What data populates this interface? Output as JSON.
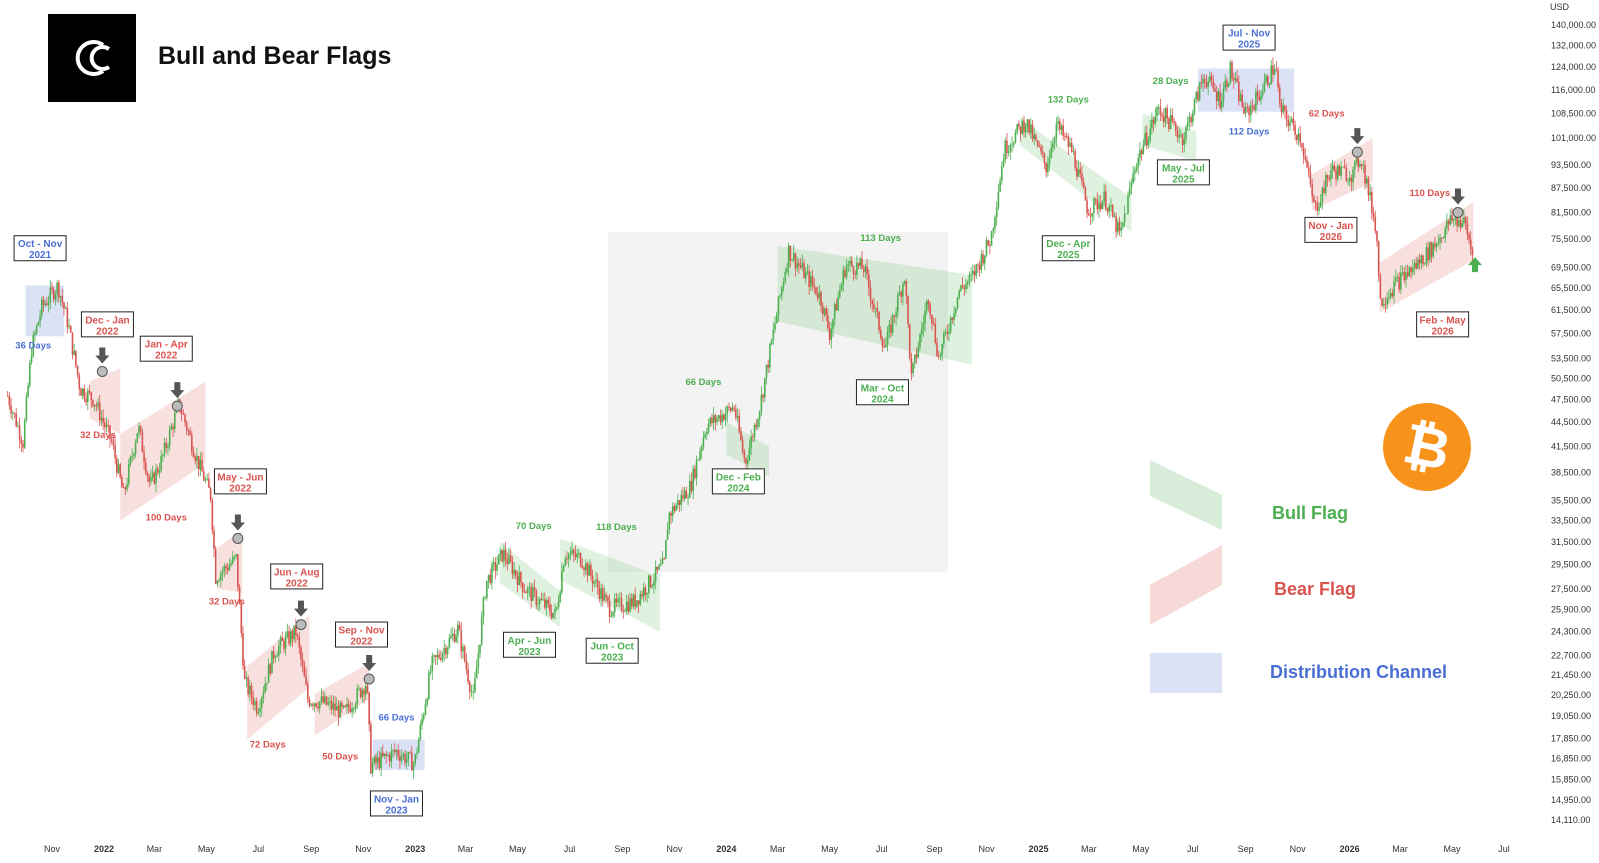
{
  "header": {
    "title": "Bull and Bear Flags"
  },
  "colors": {
    "bull": "#4caf50",
    "bear": "#d9534f",
    "distribution": "#4a6fd4",
    "candle_up": "#4caf50",
    "candle_down": "#d9534f",
    "bitcoin_orange": "#f7931a"
  },
  "legend": {
    "bull": "Bull Flag",
    "bear": "Bear Flag",
    "distribution": "Distribution Channel"
  },
  "chart_data": {
    "type": "candlestick-annotated",
    "title": "Bull and Bear Flags",
    "y_unit": "USD",
    "y_scale": "log",
    "y_ticks": [
      "140,000.00",
      "132,000.00",
      "124,000.00",
      "116,000.00",
      "108,500.00",
      "101,000.00",
      "93,500.00",
      "87,500.00",
      "81,500.00",
      "75,500.00",
      "69,500.00",
      "65,500.00",
      "61,500.00",
      "57,500.00",
      "53,500.00",
      "50,500.00",
      "47,500.00",
      "44,500.00",
      "41,500.00",
      "38,500.00",
      "35,500.00",
      "33,500.00",
      "31,500.00",
      "29,500.00",
      "27,500.00",
      "25,900.00",
      "24,300.00",
      "22,700.00",
      "21,450.00",
      "20,250.00",
      "19,050.00",
      "17,850.00",
      "16,850.00",
      "15,850.00",
      "14,950.00",
      "14,110.00"
    ],
    "y_tick_values": [
      140000,
      132000,
      124000,
      116000,
      108500,
      101000,
      93500,
      87500,
      81500,
      75500,
      69500,
      65500,
      61500,
      57500,
      53500,
      50500,
      47500,
      44500,
      41500,
      38500,
      35500,
      33500,
      31500,
      29500,
      27500,
      25900,
      24300,
      22700,
      21450,
      20250,
      19050,
      17850,
      16850,
      15850,
      14950,
      14110
    ],
    "x_ticks": [
      {
        "label": "Nov",
        "date": "2021-11-01",
        "bold": false
      },
      {
        "label": "2022",
        "date": "2022-01-01",
        "bold": true
      },
      {
        "label": "Mar",
        "date": "2022-03-01",
        "bold": false
      },
      {
        "label": "May",
        "date": "2022-05-01",
        "bold": false
      },
      {
        "label": "Jul",
        "date": "2022-07-01",
        "bold": false
      },
      {
        "label": "Sep",
        "date": "2022-09-01",
        "bold": false
      },
      {
        "label": "Nov",
        "date": "2022-11-01",
        "bold": false
      },
      {
        "label": "2023",
        "date": "2023-01-01",
        "bold": true
      },
      {
        "label": "Mar",
        "date": "2023-03-01",
        "bold": false
      },
      {
        "label": "May",
        "date": "2023-05-01",
        "bold": false
      },
      {
        "label": "Jul",
        "date": "2023-07-01",
        "bold": false
      },
      {
        "label": "Sep",
        "date": "2023-09-01",
        "bold": false
      },
      {
        "label": "Nov",
        "date": "2023-11-01",
        "bold": false
      },
      {
        "label": "2024",
        "date": "2024-01-01",
        "bold": true
      },
      {
        "label": "Mar",
        "date": "2024-03-01",
        "bold": false
      },
      {
        "label": "May",
        "date": "2024-05-01",
        "bold": false
      },
      {
        "label": "Jul",
        "date": "2024-07-01",
        "bold": false
      },
      {
        "label": "Sep",
        "date": "2024-09-01",
        "bold": false
      },
      {
        "label": "Nov",
        "date": "2024-11-01",
        "bold": false
      },
      {
        "label": "2025",
        "date": "2025-01-01",
        "bold": true
      },
      {
        "label": "Mar",
        "date": "2025-03-01",
        "bold": false
      },
      {
        "label": "May",
        "date": "2025-05-01",
        "bold": false
      },
      {
        "label": "Jul",
        "date": "2025-07-01",
        "bold": false
      },
      {
        "label": "Sep",
        "date": "2025-09-01",
        "bold": false
      },
      {
        "label": "Nov",
        "date": "2025-11-01",
        "bold": false
      },
      {
        "label": "2026",
        "date": "2026-01-01",
        "bold": true
      },
      {
        "label": "Mar",
        "date": "2026-03-01",
        "bold": false
      },
      {
        "label": "May",
        "date": "2026-05-01",
        "bold": false
      },
      {
        "label": "Jul",
        "date": "2026-07-01",
        "bold": false
      }
    ],
    "price_path": [
      [
        "2021-09-10",
        48000
      ],
      [
        "2021-09-28",
        42000
      ],
      [
        "2021-10-08",
        55000
      ],
      [
        "2021-10-20",
        62000
      ],
      [
        "2021-11-08",
        66000
      ],
      [
        "2021-11-20",
        59000
      ],
      [
        "2021-12-04",
        49000
      ],
      [
        "2021-12-20",
        47500
      ],
      [
        "2022-01-10",
        42000
      ],
      [
        "2022-01-24",
        36000
      ],
      [
        "2022-02-10",
        44000
      ],
      [
        "2022-02-24",
        37000
      ],
      [
        "2022-03-10",
        40000
      ],
      [
        "2022-03-30",
        47000
      ],
      [
        "2022-04-20",
        40000
      ],
      [
        "2022-05-06",
        36000
      ],
      [
        "2022-05-12",
        28500
      ],
      [
        "2022-06-05",
        30000
      ],
      [
        "2022-06-15",
        21000
      ],
      [
        "2022-06-30",
        19500
      ],
      [
        "2022-07-20",
        23000
      ],
      [
        "2022-08-14",
        24300
      ],
      [
        "2022-08-28",
        20000
      ],
      [
        "2022-09-15",
        19800
      ],
      [
        "2022-10-10",
        19200
      ],
      [
        "2022-11-05",
        21000
      ],
      [
        "2022-11-10",
        16500
      ],
      [
        "2022-12-10",
        17200
      ],
      [
        "2022-12-31",
        16600
      ],
      [
        "2023-01-20",
        22000
      ],
      [
        "2023-02-20",
        24500
      ],
      [
        "2023-03-10",
        20000
      ],
      [
        "2023-03-25",
        28000
      ],
      [
        "2023-04-14",
        30500
      ],
      [
        "2023-05-10",
        27500
      ],
      [
        "2023-06-15",
        25500
      ],
      [
        "2023-06-25",
        30500
      ],
      [
        "2023-07-15",
        30000
      ],
      [
        "2023-08-17",
        26000
      ],
      [
        "2023-09-15",
        26500
      ],
      [
        "2023-10-20",
        29500
      ],
      [
        "2023-10-25",
        34000
      ],
      [
        "2023-11-20",
        37000
      ],
      [
        "2023-12-08",
        44000
      ],
      [
        "2024-01-10",
        46500
      ],
      [
        "2024-01-23",
        39500
      ],
      [
        "2024-02-10",
        47000
      ],
      [
        "2024-02-28",
        60000
      ],
      [
        "2024-03-14",
        73000
      ],
      [
        "2024-04-20",
        64000
      ],
      [
        "2024-05-01",
        57500
      ],
      [
        "2024-05-20",
        70000
      ],
      [
        "2024-06-10",
        69500
      ],
      [
        "2024-07-05",
        55000
      ],
      [
        "2024-07-28",
        68000
      ],
      [
        "2024-08-05",
        50500
      ],
      [
        "2024-08-25",
        64000
      ],
      [
        "2024-09-06",
        53500
      ],
      [
        "2024-09-30",
        65000
      ],
      [
        "2024-10-15",
        67500
      ],
      [
        "2024-11-06",
        75500
      ],
      [
        "2024-11-22",
        98000
      ],
      [
        "2024-12-17",
        106000
      ],
      [
        "2025-01-10",
        93000
      ],
      [
        "2025-01-22",
        105000
      ],
      [
        "2025-02-10",
        97000
      ],
      [
        "2025-02-28",
        82000
      ],
      [
        "2025-03-20",
        85000
      ],
      [
        "2025-04-07",
        76000
      ],
      [
        "2025-04-25",
        94000
      ],
      [
        "2025-05-22",
        110000
      ],
      [
        "2025-06-20",
        101000
      ],
      [
        "2025-07-14",
        121000
      ],
      [
        "2025-08-02",
        113000
      ],
      [
        "2025-08-14",
        123000
      ],
      [
        "2025-09-01",
        108000
      ],
      [
        "2025-09-20",
        116000
      ],
      [
        "2025-10-06",
        125000
      ],
      [
        "2025-10-11",
        110000
      ],
      [
        "2025-11-05",
        101000
      ],
      [
        "2025-11-21",
        82000
      ],
      [
        "2025-12-10",
        92000
      ],
      [
        "2026-01-05",
        91000
      ],
      [
        "2026-01-14",
        96000
      ],
      [
        "2026-02-01",
        78000
      ],
      [
        "2026-02-06",
        63000
      ],
      [
        "2026-02-25",
        66500
      ],
      [
        "2026-03-20",
        70000
      ],
      [
        "2026-04-10",
        74000
      ],
      [
        "2026-05-01",
        80000
      ],
      [
        "2026-05-16",
        79000
      ],
      [
        "2026-05-26",
        71500
      ]
    ],
    "patterns": [
      {
        "kind": "distribution",
        "start": "2021-10-01",
        "end": "2021-11-15",
        "top": 66000,
        "bottom": 57000
      },
      {
        "kind": "bear",
        "start": "2021-12-15",
        "end": "2022-01-20",
        "bottom_start": 45000,
        "bottom_end": 43000,
        "top_start": 50000,
        "top_end": 52000
      },
      {
        "kind": "bear",
        "start": "2022-01-20",
        "end": "2022-04-30",
        "bottom_start": 33500,
        "bottom_end": 39500,
        "top_start": 43000,
        "top_end": 50000
      },
      {
        "kind": "bear",
        "start": "2022-05-14",
        "end": "2022-06-12",
        "bottom_start": 27500,
        "bottom_end": 27200,
        "top_start": 31000,
        "top_end": 32500
      },
      {
        "kind": "bear",
        "start": "2022-06-18",
        "end": "2022-08-30",
        "bottom_start": 17800,
        "bottom_end": 20700,
        "top_start": 22000,
        "top_end": 25500
      },
      {
        "kind": "bear",
        "start": "2022-09-05",
        "end": "2022-11-08",
        "bottom_start": 18000,
        "bottom_end": 20000,
        "top_start": 20300,
        "top_end": 22200
      },
      {
        "kind": "distribution",
        "start": "2022-11-12",
        "end": "2023-01-12",
        "top": 17800,
        "bottom": 16300
      },
      {
        "kind": "bull",
        "start": "2023-04-10",
        "end": "2023-06-20",
        "top_start": 31500,
        "top_end": 27300,
        "bottom_start": 28000,
        "bottom_end": 24600
      },
      {
        "kind": "bull",
        "start": "2023-06-20",
        "end": "2023-10-15",
        "top_start": 31800,
        "top_end": 28500,
        "bottom_start": 28200,
        "bottom_end": 24300
      },
      {
        "kind": "bull",
        "start": "2024-01-01",
        "end": "2024-02-20",
        "top_start": 44500,
        "top_end": 41500,
        "bottom_start": 40500,
        "bottom_end": 38000
      },
      {
        "kind": "bull",
        "start": "2024-03-01",
        "end": "2024-10-15",
        "top_start": 74000,
        "top_end": 68000,
        "bottom_start": 59500,
        "bottom_end": 52500
      },
      {
        "kind": "bull",
        "start": "2024-12-10",
        "end": "2025-04-20",
        "top_start": 107000,
        "top_end": 85000,
        "bottom_start": 99000,
        "bottom_end": 77000
      },
      {
        "kind": "bull",
        "start": "2025-05-03",
        "end": "2025-07-05",
        "top_start": 108500,
        "top_end": 103000,
        "bottom_start": 99000,
        "bottom_end": 94500
      },
      {
        "kind": "distribution",
        "start": "2025-07-07",
        "end": "2025-10-28",
        "top": 123500,
        "bottom": 109000
      },
      {
        "kind": "bear",
        "start": "2025-11-18",
        "end": "2026-01-28",
        "bottom_start": 82000,
        "bottom_end": 89000,
        "top_start": 91000,
        "top_end": 101000
      },
      {
        "kind": "bear",
        "start": "2026-02-05",
        "end": "2026-05-26",
        "bottom_start": 61000,
        "bottom_end": 71000,
        "top_start": 70500,
        "top_end": 84000
      }
    ],
    "period_labels": [
      {
        "text": "Oct - Nov 2021",
        "lines": [
          "Oct - Nov",
          "2021"
        ],
        "kind": "distribution",
        "date": "2021-10-18",
        "price": 73500
      },
      {
        "text": "Dec - Jan 2022",
        "lines": [
          "Dec - Jan",
          "2022"
        ],
        "kind": "bear",
        "date": "2022-01-05",
        "price": 59000
      },
      {
        "text": "Jan - Apr 2022",
        "lines": [
          "Jan - Apr",
          "2022"
        ],
        "kind": "bear",
        "date": "2022-03-15",
        "price": 55000
      },
      {
        "text": "May - Jun 2022",
        "lines": [
          "May - Jun",
          "2022"
        ],
        "kind": "bear",
        "date": "2022-06-10",
        "price": 37500
      },
      {
        "text": "Jun - Aug 2022",
        "lines": [
          "Jun - Aug",
          "2022"
        ],
        "kind": "bear",
        "date": "2022-08-15",
        "price": 28500
      },
      {
        "text": "Sep - Nov 2022",
        "lines": [
          "Sep - Nov",
          "2022"
        ],
        "kind": "bear",
        "date": "2022-10-30",
        "price": 24100
      },
      {
        "text": "Nov - Jan 2023",
        "lines": [
          "Nov - Jan",
          "2023"
        ],
        "kind": "distribution",
        "date": "2022-12-10",
        "price": 14800
      },
      {
        "text": "Apr - Jun 2023",
        "lines": [
          "Apr - Jun",
          "2023"
        ],
        "kind": "bull",
        "date": "2023-05-15",
        "price": 23400
      },
      {
        "text": "Jun - Oct 2023",
        "lines": [
          "Jun - Oct",
          "2023"
        ],
        "kind": "bull",
        "date": "2023-08-20",
        "price": 23000
      },
      {
        "text": "Dec - Feb 2024",
        "lines": [
          "Dec - Feb",
          "2024"
        ],
        "kind": "bull",
        "date": "2024-01-15",
        "price": 37500
      },
      {
        "text": "Mar - Oct 2024",
        "lines": [
          "Mar - Oct",
          "2024"
        ],
        "kind": "bull",
        "date": "2024-07-02",
        "price": 48500
      },
      {
        "text": "Dec - Apr 2025",
        "lines": [
          "Dec - Apr",
          "2025"
        ],
        "kind": "bull",
        "date": "2025-02-05",
        "price": 73500
      },
      {
        "text": "May - Jul 2025",
        "lines": [
          "May - Jul",
          "2025"
        ],
        "kind": "bull",
        "date": "2025-06-20",
        "price": 91500
      },
      {
        "text": "Jul - Nov 2025",
        "lines": [
          "Jul - Nov",
          "2025"
        ],
        "kind": "distribution",
        "date": "2025-09-05",
        "price": 135000
      },
      {
        "text": "Nov - Jan 2026",
        "lines": [
          "Nov - Jan",
          "2026"
        ],
        "kind": "bear",
        "date": "2025-12-10",
        "price": 77500
      },
      {
        "text": "Feb - May 2026",
        "lines": [
          "Feb - May",
          "2026"
        ],
        "kind": "bear",
        "date": "2026-04-20",
        "price": 59000
      }
    ],
    "duration_labels": [
      {
        "text": "36 Days",
        "kind": "distribution",
        "date": "2021-10-10",
        "price": 55000
      },
      {
        "text": "32 Days",
        "kind": "bear",
        "date": "2021-12-25",
        "price": 42500
      },
      {
        "text": "100 Days",
        "kind": "bear",
        "date": "2022-03-15",
        "price": 33500
      },
      {
        "text": "32 Days",
        "kind": "bear",
        "date": "2022-05-25",
        "price": 26300
      },
      {
        "text": "72 Days",
        "kind": "bear",
        "date": "2022-07-12",
        "price": 17400
      },
      {
        "text": "50 Days",
        "kind": "bear",
        "date": "2022-10-05",
        "price": 16800
      },
      {
        "text": "66 Days",
        "kind": "distribution",
        "date": "2022-12-10",
        "price": 18800
      },
      {
        "text": "70 Days",
        "kind": "bull",
        "date": "2023-05-20",
        "price": 32700
      },
      {
        "text": "118 Days",
        "kind": "bull",
        "date": "2023-08-25",
        "price": 32600
      },
      {
        "text": "66 Days",
        "kind": "bull",
        "date": "2023-12-05",
        "price": 49500
      },
      {
        "text": "113 Days",
        "kind": "bull",
        "date": "2024-06-30",
        "price": 75000
      },
      {
        "text": "132 Days",
        "kind": "bull",
        "date": "2025-02-05",
        "price": 112000
      },
      {
        "text": "28 Days",
        "kind": "bull",
        "date": "2025-06-05",
        "price": 118000
      },
      {
        "text": "112 Days",
        "kind": "distribution",
        "date": "2025-09-05",
        "price": 102000
      },
      {
        "text": "62 Days",
        "kind": "bear",
        "date": "2025-12-05",
        "price": 107500
      },
      {
        "text": "110 Days",
        "kind": "bear",
        "date": "2026-04-05",
        "price": 85500
      }
    ],
    "breakdown_markers": [
      {
        "date": "2021-12-30",
        "price": 51500
      },
      {
        "date": "2022-03-28",
        "price": 46600
      },
      {
        "date": "2022-06-07",
        "price": 31800
      },
      {
        "date": "2022-08-20",
        "price": 24800
      },
      {
        "date": "2022-11-08",
        "price": 21200
      },
      {
        "date": "2026-01-10",
        "price": 97000
      },
      {
        "date": "2026-05-08",
        "price": 81500
      }
    ],
    "breakout_arrow": {
      "date": "2026-05-28",
      "price": 70000
    },
    "legend_position": "right"
  }
}
